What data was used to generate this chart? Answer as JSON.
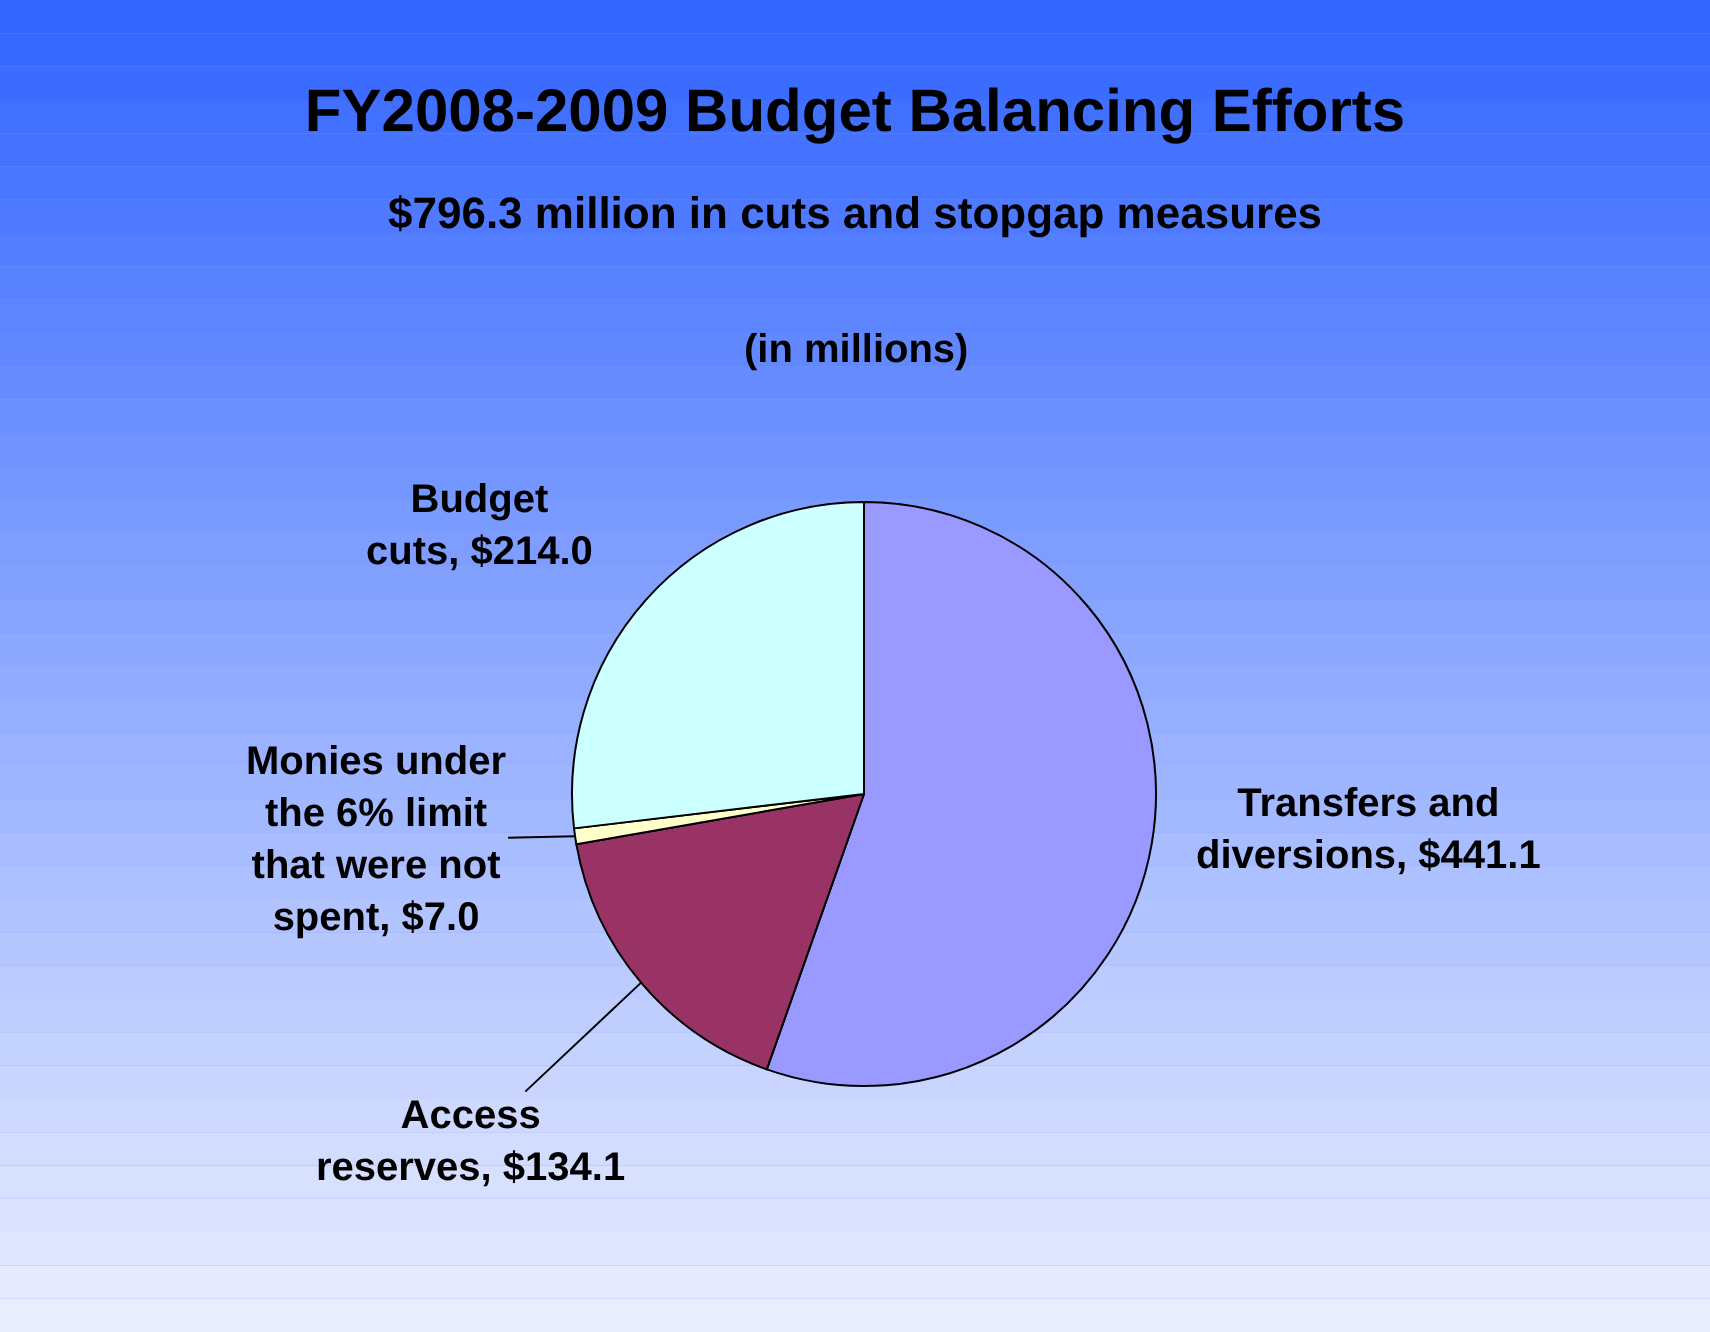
{
  "chart_data": {
    "type": "pie",
    "title": "FY2008-2009 Budget Balancing Efforts",
    "subtitle": "$796.3 million in cuts and stopgap measures",
    "annotations": [
      "(in millions)"
    ],
    "categories": [
      "Transfers and diversions",
      "Access reserves",
      "Monies under the 6% limit that were not spent",
      "Budget cuts"
    ],
    "values": [
      441.1,
      134.1,
      7.0,
      214.0
    ],
    "value_labels": [
      "$441.1",
      "$134.1",
      "$7.0",
      "$214.0"
    ],
    "colors": [
      "#9999ff",
      "#993366",
      "#ffffcc",
      "#ccffff"
    ],
    "legend": false
  }
}
